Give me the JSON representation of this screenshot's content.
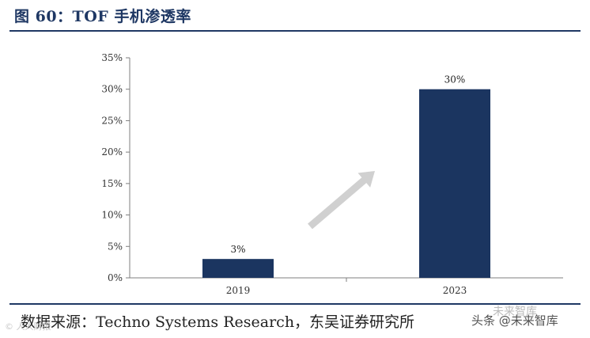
{
  "figure_title": "图 60：TOF 手机渗透率",
  "source_text": "数据来源：Techno Systems Research，东吴证券研究所",
  "watermarks": {
    "right": "头条 @未来智库",
    "left": "© 人人财报",
    "circle": "未来智库"
  },
  "colors": {
    "bar": "#1b3560",
    "title": "#1f3864",
    "arrow": "#d0d0d0"
  },
  "chart_data": {
    "type": "bar",
    "categories": [
      "2019",
      "2023"
    ],
    "values": [
      3,
      30
    ],
    "data_labels": [
      "3%",
      "30%"
    ],
    "ylim": [
      0,
      35
    ],
    "yticks": [
      0,
      5,
      10,
      15,
      20,
      25,
      30,
      35
    ],
    "ytick_labels": [
      "0%",
      "5%",
      "10%",
      "15%",
      "20%",
      "25%",
      "30%",
      "35%"
    ],
    "title": "",
    "xlabel": "",
    "ylabel": "",
    "grid": false,
    "annotation": "arrow-up-right"
  }
}
